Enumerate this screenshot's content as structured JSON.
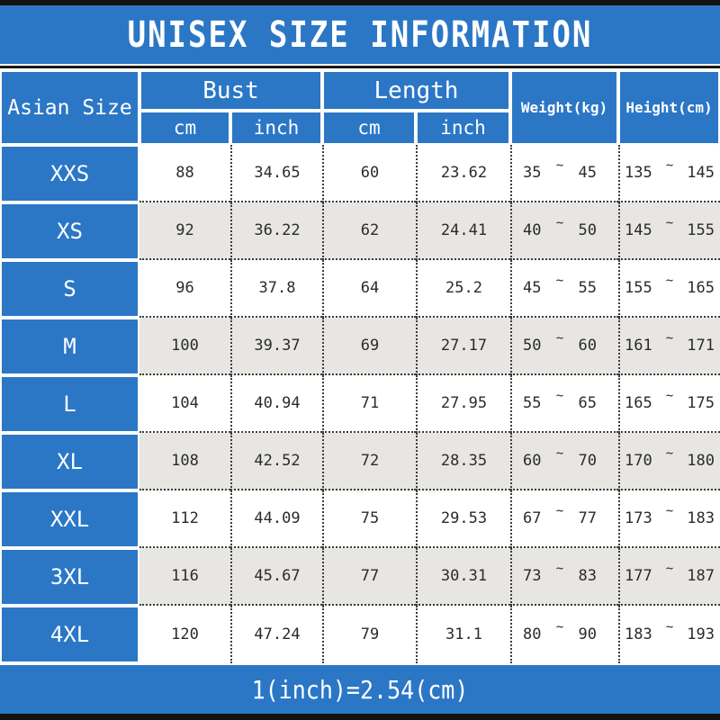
{
  "title": "UNISEX SIZE INFORMATION",
  "footnote": "1(inch)=2.54(cm)",
  "colors": {
    "accent_blue": "#2b77c6",
    "row_alt_gray": "#e7e6e3",
    "bar_black": "#121212",
    "text_on_blue": "#ffffff",
    "text_data": "#2b2b2b"
  },
  "chart_data": {
    "type": "table",
    "title": "UNISEX SIZE INFORMATION",
    "header": {
      "size": "Asian Size",
      "bust": "Bust",
      "length": "Length",
      "weight": "Weight(kg)",
      "height": "Height(cm)",
      "unit_cm": "cm",
      "unit_inch": "inch"
    },
    "tilde": "~",
    "rows": [
      {
        "size": "XXS",
        "bust_cm": "88",
        "bust_inch": "34.65",
        "length_cm": "60",
        "length_inch": "23.62",
        "weight_min": "35",
        "weight_max": "45",
        "height_min": "135",
        "height_max": "145"
      },
      {
        "size": "XS",
        "bust_cm": "92",
        "bust_inch": "36.22",
        "length_cm": "62",
        "length_inch": "24.41",
        "weight_min": "40",
        "weight_max": "50",
        "height_min": "145",
        "height_max": "155"
      },
      {
        "size": "S",
        "bust_cm": "96",
        "bust_inch": "37.8",
        "length_cm": "64",
        "length_inch": "25.2",
        "weight_min": "45",
        "weight_max": "55",
        "height_min": "155",
        "height_max": "165"
      },
      {
        "size": "M",
        "bust_cm": "100",
        "bust_inch": "39.37",
        "length_cm": "69",
        "length_inch": "27.17",
        "weight_min": "50",
        "weight_max": "60",
        "height_min": "161",
        "height_max": "171"
      },
      {
        "size": "L",
        "bust_cm": "104",
        "bust_inch": "40.94",
        "length_cm": "71",
        "length_inch": "27.95",
        "weight_min": "55",
        "weight_max": "65",
        "height_min": "165",
        "height_max": "175"
      },
      {
        "size": "XL",
        "bust_cm": "108",
        "bust_inch": "42.52",
        "length_cm": "72",
        "length_inch": "28.35",
        "weight_min": "60",
        "weight_max": "70",
        "height_min": "170",
        "height_max": "180"
      },
      {
        "size": "XXL",
        "bust_cm": "112",
        "bust_inch": "44.09",
        "length_cm": "75",
        "length_inch": "29.53",
        "weight_min": "67",
        "weight_max": "77",
        "height_min": "173",
        "height_max": "183"
      },
      {
        "size": "3XL",
        "bust_cm": "116",
        "bust_inch": "45.67",
        "length_cm": "77",
        "length_inch": "30.31",
        "weight_min": "73",
        "weight_max": "83",
        "height_min": "177",
        "height_max": "187"
      },
      {
        "size": "4XL",
        "bust_cm": "120",
        "bust_inch": "47.24",
        "length_cm": "79",
        "length_inch": "31.1",
        "weight_min": "80",
        "weight_max": "90",
        "height_min": "183",
        "height_max": "193"
      }
    ],
    "footnote": "1(inch)=2.54(cm)"
  }
}
